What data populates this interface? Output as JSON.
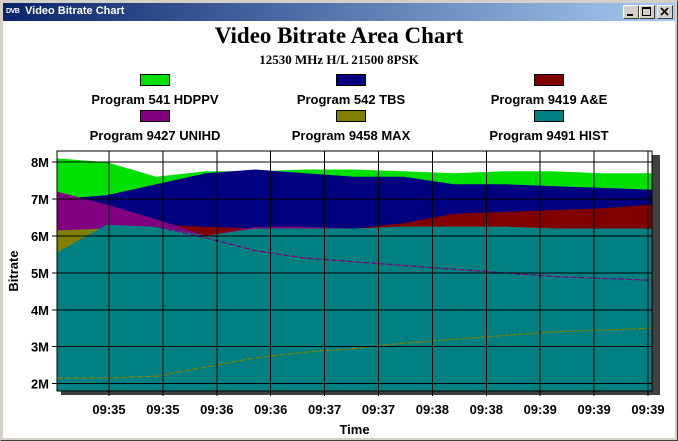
{
  "window": {
    "icon_text": "DVB",
    "title": "Video Bitrate Chart",
    "controls": [
      "minimize",
      "maximize",
      "close"
    ]
  },
  "chart_data": {
    "type": "area",
    "title": "Video Bitrate Area Chart",
    "subtitle": "12530 MHz H/L 21500 8PSK",
    "xlabel": "Time",
    "ylabel": "Bitrate",
    "ylim": [
      1.8,
      8.3
    ],
    "y_ticks": [
      "2M",
      "3M",
      "4M",
      "5M",
      "6M",
      "7M",
      "8M"
    ],
    "y_tick_values": [
      2,
      3,
      4,
      5,
      6,
      7,
      8
    ],
    "x_ticks": [
      "09:35",
      "09:35",
      "09:36",
      "09:36",
      "09:37",
      "09:37",
      "09:38",
      "09:38",
      "09:39",
      "09:39",
      "09:39"
    ],
    "grid": true,
    "legend_placement": "top",
    "x": [
      0,
      1,
      2,
      3,
      4,
      5,
      6,
      7,
      8,
      9,
      10,
      11,
      12
    ],
    "series": [
      {
        "name": "Program 541 HDPPV",
        "color": "#00e000",
        "values": [
          8.1,
          8.0,
          7.6,
          7.75,
          7.75,
          7.8,
          7.8,
          7.75,
          7.7,
          7.75,
          7.75,
          7.7,
          7.7
        ]
      },
      {
        "name": "Program 542 TBS",
        "color": "#000080",
        "values": [
          7.0,
          7.1,
          7.4,
          7.7,
          7.8,
          7.7,
          7.6,
          7.6,
          7.4,
          7.4,
          7.35,
          7.3,
          7.25
        ]
      },
      {
        "name": "Program 9419 A&E",
        "color": "#800000",
        "values": [
          6.6,
          6.45,
          6.3,
          6.25,
          6.2,
          6.2,
          6.2,
          6.35,
          6.6,
          6.65,
          6.7,
          6.75,
          6.85
        ]
      },
      {
        "name": "Program 9427 UNIHD",
        "color": "#800080",
        "values": [
          7.2,
          6.85,
          6.45,
          6.0,
          6.25,
          6.25,
          6.2,
          6.25,
          6.25,
          6.25,
          6.2,
          6.2,
          6.2
        ]
      },
      {
        "name": "Program 9458 MAX",
        "color": "#808000",
        "values": [
          6.15,
          6.2,
          6.2,
          6.0,
          6.2,
          6.2,
          6.2,
          6.25,
          6.25,
          6.25,
          6.2,
          6.2,
          6.2
        ]
      },
      {
        "name": "Program 9491 HIST",
        "color": "#008080",
        "values": [
          5.55,
          6.3,
          6.25,
          6.0,
          6.2,
          6.2,
          6.2,
          6.25,
          6.25,
          6.25,
          6.2,
          6.2,
          6.2
        ]
      }
    ],
    "line_overlays": [
      {
        "color": "#800080",
        "values": [
          6.8,
          6.65,
          6.25,
          5.95,
          5.6,
          5.4,
          5.3,
          5.2,
          5.1,
          5.0,
          4.9,
          4.85,
          4.8
        ]
      },
      {
        "color": "#808000",
        "values": [
          2.15,
          2.15,
          2.2,
          2.45,
          2.7,
          2.85,
          2.95,
          3.1,
          3.2,
          3.3,
          3.4,
          3.45,
          3.5
        ]
      }
    ]
  }
}
